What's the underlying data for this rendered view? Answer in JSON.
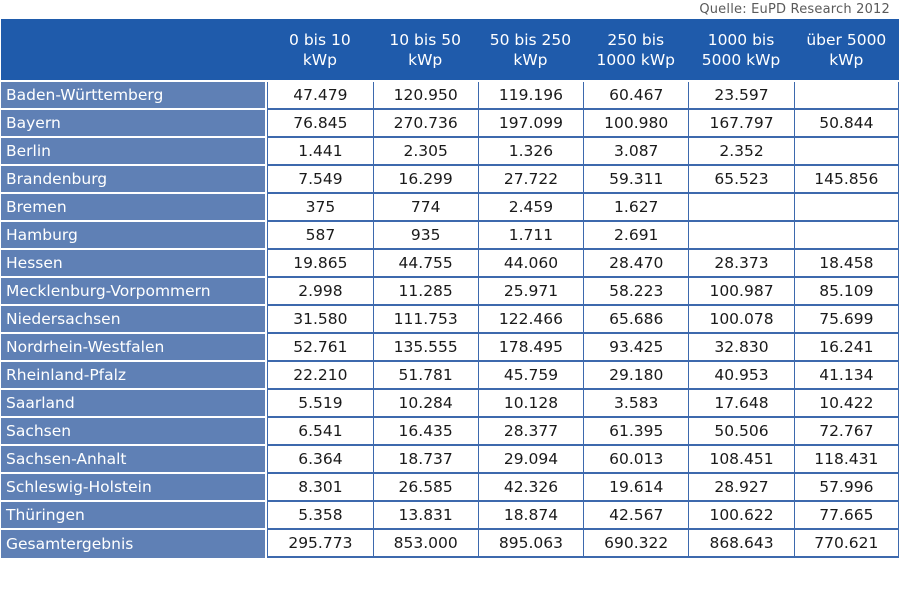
{
  "source": "Quelle: EuPD Research 2012",
  "columns": [
    {
      "line1": "0 bis 10",
      "line2": "kWp"
    },
    {
      "line1": "10 bis 50",
      "line2": "kWp"
    },
    {
      "line1": "50 bis 250",
      "line2": "kWp"
    },
    {
      "line1": "250 bis",
      "line2": "1000 kWp"
    },
    {
      "line1": "1000 bis",
      "line2": "5000 kWp"
    },
    {
      "line1": "über 5000",
      "line2": "kWp"
    }
  ],
  "rows": [
    {
      "label": "Baden-Württemberg",
      "values": [
        "47.479",
        "120.950",
        "119.196",
        "60.467",
        "23.597",
        ""
      ]
    },
    {
      "label": "Bayern",
      "values": [
        "76.845",
        "270.736",
        "197.099",
        "100.980",
        "167.797",
        "50.844"
      ]
    },
    {
      "label": "Berlin",
      "values": [
        "1.441",
        "2.305",
        "1.326",
        "3.087",
        "2.352",
        ""
      ]
    },
    {
      "label": "Brandenburg",
      "values": [
        "7.549",
        "16.299",
        "27.722",
        "59.311",
        "65.523",
        "145.856"
      ]
    },
    {
      "label": "Bremen",
      "values": [
        "375",
        "774",
        "2.459",
        "1.627",
        "",
        ""
      ]
    },
    {
      "label": "Hamburg",
      "values": [
        "587",
        "935",
        "1.711",
        "2.691",
        "",
        ""
      ]
    },
    {
      "label": "Hessen",
      "values": [
        "19.865",
        "44.755",
        "44.060",
        "28.470",
        "28.373",
        "18.458"
      ]
    },
    {
      "label": "Mecklenburg-Vorpommern",
      "values": [
        "2.998",
        "11.285",
        "25.971",
        "58.223",
        "100.987",
        "85.109"
      ]
    },
    {
      "label": "Niedersachsen",
      "values": [
        "31.580",
        "111.753",
        "122.466",
        "65.686",
        "100.078",
        "75.699"
      ]
    },
    {
      "label": "Nordrhein-Westfalen",
      "values": [
        "52.761",
        "135.555",
        "178.495",
        "93.425",
        "32.830",
        "16.241"
      ]
    },
    {
      "label": "Rheinland-Pfalz",
      "values": [
        "22.210",
        "51.781",
        "45.759",
        "29.180",
        "40.953",
        "41.134"
      ]
    },
    {
      "label": "Saarland",
      "values": [
        "5.519",
        "10.284",
        "10.128",
        "3.583",
        "17.648",
        "10.422"
      ]
    },
    {
      "label": "Sachsen",
      "values": [
        "6.541",
        "16.435",
        "28.377",
        "61.395",
        "50.506",
        "72.767"
      ]
    },
    {
      "label": "Sachsen-Anhalt",
      "values": [
        "6.364",
        "18.737",
        "29.094",
        "60.013",
        "108.451",
        "118.431"
      ]
    },
    {
      "label": "Schleswig-Holstein",
      "values": [
        "8.301",
        "26.585",
        "42.326",
        "19.614",
        "28.927",
        "57.996"
      ]
    },
    {
      "label": "Thüringen",
      "values": [
        "5.358",
        "13.831",
        "18.874",
        "42.567",
        "100.622",
        "77.665"
      ]
    }
  ],
  "total": {
    "label": "Gesamtergebnis",
    "values": [
      "295.773",
      "853.000",
      "895.063",
      "690.322",
      "868.643",
      "770.621"
    ]
  },
  "colors": {
    "header_bg": "#1f5bab",
    "row_label_bg": "#5f80b5",
    "grid": "#3d69ad"
  }
}
